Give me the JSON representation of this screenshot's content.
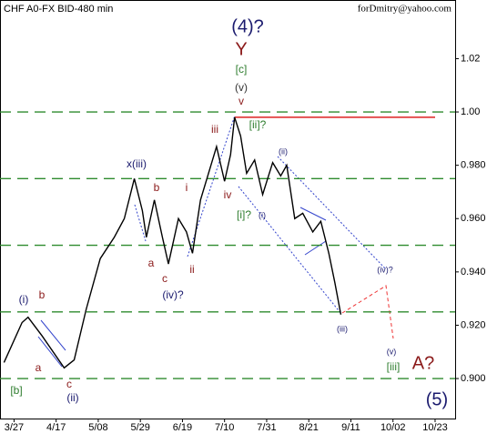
{
  "chart_data": {
    "type": "line",
    "title": "CHF A0-FX BID-480 min",
    "subtitle": "forDmitry@yahoo.com",
    "color": "#000000",
    "x": [
      -5,
      4,
      7,
      14,
      25,
      30,
      36,
      43,
      50,
      55,
      60,
      64,
      66,
      70,
      74,
      77,
      82,
      86,
      89,
      93,
      99,
      101,
      105,
      108,
      110,
      113,
      116,
      120,
      124,
      129,
      133,
      136,
      140,
      144,
      149,
      153,
      157,
      160,
      163
    ],
    "values": [
      0.906,
      0.921,
      0.923,
      0.916,
      0.904,
      0.907,
      0.926,
      0.945,
      0.953,
      0.96,
      0.975,
      0.963,
      0.953,
      0.967,
      0.953,
      0.943,
      0.96,
      0.955,
      0.947,
      0.967,
      0.982,
      0.987,
      0.974,
      0.984,
      0.998,
      0.991,
      0.977,
      0.982,
      0.969,
      0.981,
      0.976,
      0.98,
      0.96,
      0.962,
      0.955,
      0.959,
      0.947,
      0.936,
      0.924
    ],
    "xlim": [
      -7,
      220
    ],
    "xticks": [
      {
        "value": 0,
        "label": "3/27"
      },
      {
        "value": 21,
        "label": "4/17"
      },
      {
        "value": 42,
        "label": "5/08"
      },
      {
        "value": 63,
        "label": "5/29"
      },
      {
        "value": 84,
        "label": "6/19"
      },
      {
        "value": 105,
        "label": "7/10"
      },
      {
        "value": 126,
        "label": "7/31"
      },
      {
        "value": 147,
        "label": "8/21"
      },
      {
        "value": 168,
        "label": "9/11"
      },
      {
        "value": 189,
        "label": "10/02"
      },
      {
        "value": 210,
        "label": "10/23"
      }
    ],
    "ylim": [
      0.885,
      1.042
    ],
    "yticks": [
      {
        "value": 0.9,
        "label": "0.900"
      },
      {
        "value": 0.92,
        "label": "0.920"
      },
      {
        "value": 0.94,
        "label": "0.940"
      },
      {
        "value": 0.96,
        "label": "0.960"
      },
      {
        "value": 0.98,
        "label": "0.980"
      },
      {
        "value": 1,
        "label": "1.00"
      },
      1.02
    ],
    "levels": [
      1.0,
      0.975,
      0.95,
      0.925,
      0.9
    ],
    "level_color": "#2e8b2e",
    "resistance": 0.998,
    "resistance_color": "#dd2222",
    "annotations": [
      {
        "text": "(4)?",
        "color": "#1a1a6e"
      },
      {
        "text": "Y",
        "color": "#8b1a1a"
      },
      {
        "text": "[c]",
        "color": "#2e7d2e"
      },
      {
        "text": "(v)",
        "color": "#333333"
      },
      {
        "text": "v",
        "color": "#8b1a1a"
      },
      {
        "text": "iii",
        "color": "#8b1a1a"
      },
      {
        "text": "[ii]?",
        "color": "#2e7d2e"
      },
      {
        "text": "(ii)",
        "color": "#1a1a6e"
      },
      {
        "text": "x(iii)",
        "color": "#1a1a6e"
      },
      {
        "text": "b",
        "color": "#8b1a1a"
      },
      {
        "text": "i",
        "color": "#8b1a1a"
      },
      {
        "text": "iv",
        "color": "#8b1a1a"
      },
      {
        "text": "[i]?",
        "color": "#2e7d2e"
      },
      {
        "text": "(i)",
        "color": "#1a1a6e"
      },
      {
        "text": "a",
        "color": "#8b1a1a"
      },
      {
        "text": "c",
        "color": "#8b1a1a"
      },
      {
        "text": "ii",
        "color": "#8b1a1a"
      },
      {
        "text": "(iv)?",
        "color": "#1a1a6e"
      },
      {
        "text": "(i)",
        "color": "#1a1a6e"
      },
      {
        "text": "b",
        "color": "#8b1a1a"
      },
      {
        "text": "a",
        "color": "#8b1a1a"
      },
      {
        "text": "c",
        "color": "#8b1a1a"
      },
      {
        "text": "(ii)",
        "color": "#1a1a6e"
      },
      {
        "text": "[b]",
        "color": "#2e7d2e"
      },
      {
        "text": "(iii)",
        "color": "#1a1a6e"
      },
      {
        "text": "(iv)?",
        "color": "#1a1a6e"
      },
      {
        "text": "(v)",
        "color": "#1a1a6e"
      },
      {
        "text": "[iii]",
        "color": "#2e7d2e"
      },
      {
        "text": "A?",
        "color": "#8b1a1a"
      },
      {
        "text": "(5)",
        "color": "#1a1a6e"
      }
    ]
  }
}
